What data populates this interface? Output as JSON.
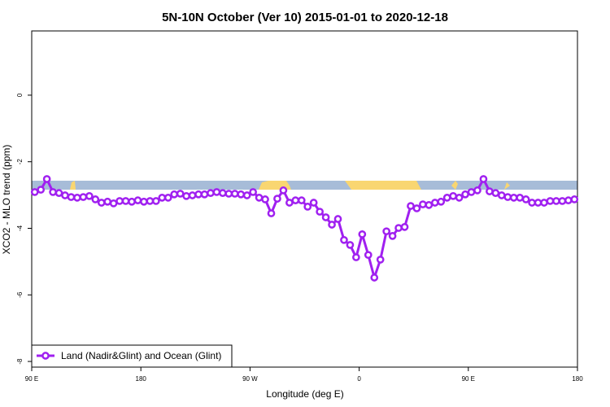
{
  "chart_data": {
    "type": "line",
    "title": "5N-10N October (Ver 10)   2015-01-01 to 2020-12-18",
    "xlabel": "Longitude (deg E)",
    "ylabel": "XCO2 - MLO trend (ppm)",
    "x": [
      92.5,
      97.5,
      102.5,
      107.5,
      112.5,
      117.5,
      122.5,
      127.5,
      132.5,
      137.5,
      142.5,
      147.5,
      152.5,
      157.5,
      162.5,
      167.5,
      172.5,
      177.5,
      182.5,
      187.5,
      192.5,
      197.5,
      202.5,
      207.5,
      212.5,
      217.5,
      222.5,
      227.5,
      232.5,
      237.5,
      242.5,
      247.5,
      252.5,
      257.5,
      262.5,
      267.5,
      272.5,
      277.5,
      282.5,
      287.5,
      292.5,
      297.5,
      302.5,
      307.5,
      312.5,
      317.5,
      322.5,
      327.5,
      332.5,
      337.5,
      342.5,
      347.5,
      352.5,
      357.5,
      362.5,
      367.5,
      372.5,
      377.5,
      382.5,
      387.5,
      392.5,
      397.5,
      402.5,
      407.5,
      412.5,
      417.5,
      422.5,
      427.5,
      432.5,
      437.5,
      442.5,
      447.5,
      452.5,
      457.5,
      462.5,
      467.5,
      472.5,
      477.5,
      482.5,
      487.5,
      492.5,
      497.5,
      502.5,
      507.5,
      512.5,
      517.5,
      522.5,
      527.5,
      532.5,
      537.5
    ],
    "series": [
      {
        "name": "Land (Nadir&Glint) and Ocean (Glint)",
        "color": "#a020f0",
        "values": [
          -2.91,
          -2.84,
          -2.52,
          -2.91,
          -2.94,
          -3.01,
          -3.06,
          -3.08,
          -3.06,
          -3.03,
          -3.13,
          -3.23,
          -3.2,
          -3.25,
          -3.18,
          -3.18,
          -3.2,
          -3.16,
          -3.2,
          -3.18,
          -3.18,
          -3.08,
          -3.08,
          -2.98,
          -2.96,
          -3.03,
          -3.01,
          -2.98,
          -2.98,
          -2.94,
          -2.91,
          -2.94,
          -2.96,
          -2.96,
          -2.98,
          -3.01,
          -2.91,
          -3.08,
          -3.13,
          -3.55,
          -3.11,
          -2.86,
          -3.23,
          -3.16,
          -3.16,
          -3.35,
          -3.23,
          -3.5,
          -3.67,
          -3.89,
          -3.72,
          -4.35,
          -4.5,
          -4.87,
          -4.18,
          -4.8,
          -5.48,
          -4.94,
          -4.09,
          -4.23,
          -3.99,
          -3.96,
          -3.33,
          -3.4,
          -3.28,
          -3.3,
          -3.23,
          -3.2,
          -3.08,
          -3.03,
          -3.08,
          -2.98,
          -2.91,
          -2.86,
          -2.52,
          -2.89,
          -2.94,
          -3.01,
          -3.06,
          -3.08,
          -3.08,
          -3.13,
          -3.23,
          -3.23,
          -3.23,
          -3.18,
          -3.18,
          -3.18,
          -3.16,
          -3.13
        ]
      }
    ],
    "xlim": [
      90,
      540
    ],
    "xticks": [
      {
        "value": 90,
        "label": "90 E"
      },
      180,
      {
        "value": 270,
        "label": "90 W"
      },
      {
        "value": 360,
        "label": "0"
      },
      {
        "value": 450,
        "label": "90 E"
      },
      {
        "value": 540,
        "label": "180"
      }
    ],
    "ylim": [
      -8.17,
      1.93
    ],
    "yticks": [
      0,
      -2,
      -4,
      -6,
      -8
    ],
    "legend": "bottomleft"
  }
}
